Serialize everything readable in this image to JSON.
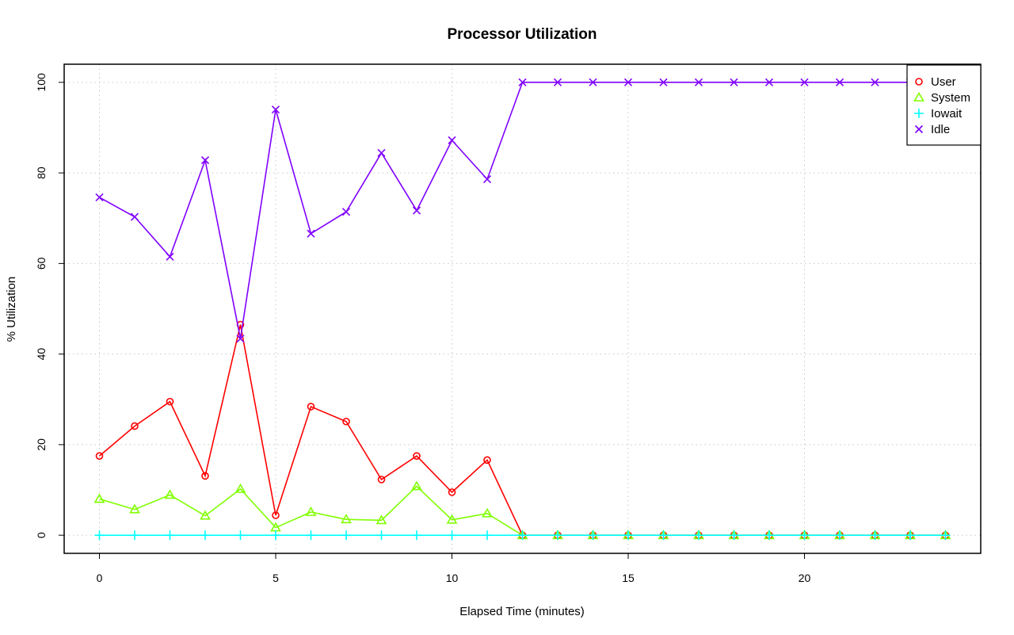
{
  "chart_data": {
    "type": "line",
    "title": "Processor Utilization",
    "xlabel": "Elapsed Time (minutes)",
    "ylabel": "% Utilization",
    "xlim": [
      -1,
      25
    ],
    "ylim": [
      -4,
      104
    ],
    "x_ticks": [
      "0",
      "5",
      "10",
      "15",
      "20"
    ],
    "y_ticks": [
      "0",
      "20",
      "40",
      "60",
      "80",
      "100"
    ],
    "grid": true,
    "legend_position": "top-right",
    "x": [
      0,
      1,
      2,
      3,
      4,
      5,
      6,
      7,
      8,
      9,
      10,
      11,
      12,
      13,
      14,
      15,
      16,
      17,
      18,
      19,
      20,
      21,
      22,
      23,
      24
    ],
    "series": [
      {
        "name": "User",
        "color": "#ff0000",
        "marker": "circle",
        "values": [
          17.5,
          24.1,
          29.5,
          13.1,
          46.5,
          4.4,
          28.4,
          25.1,
          12.3,
          17.5,
          9.5,
          16.6,
          0,
          0,
          0,
          0,
          0,
          0,
          0,
          0,
          0,
          0,
          0,
          0,
          0
        ]
      },
      {
        "name": "System",
        "color": "#80ff00",
        "marker": "triangle",
        "values": [
          8.0,
          5.7,
          8.9,
          4.3,
          10.2,
          1.7,
          5.1,
          3.5,
          3.3,
          10.8,
          3.4,
          4.8,
          0,
          0,
          0,
          0,
          0,
          0,
          0,
          0,
          0,
          0,
          0,
          0,
          0
        ]
      },
      {
        "name": "Iowait",
        "color": "#00ffff",
        "marker": "plus",
        "values": [
          0,
          0,
          0,
          0,
          0,
          0,
          0,
          0,
          0,
          0,
          0,
          0,
          0,
          0,
          0,
          0,
          0,
          0,
          0,
          0,
          0,
          0,
          0,
          0,
          0
        ]
      },
      {
        "name": "Idle",
        "color": "#8000ff",
        "marker": "cross",
        "values": [
          74.6,
          70.3,
          61.5,
          82.8,
          43.4,
          94.0,
          66.6,
          71.4,
          84.4,
          71.7,
          87.2,
          78.6,
          100,
          100,
          100,
          100,
          100,
          100,
          100,
          100,
          100,
          100,
          100,
          100,
          100
        ]
      }
    ]
  }
}
